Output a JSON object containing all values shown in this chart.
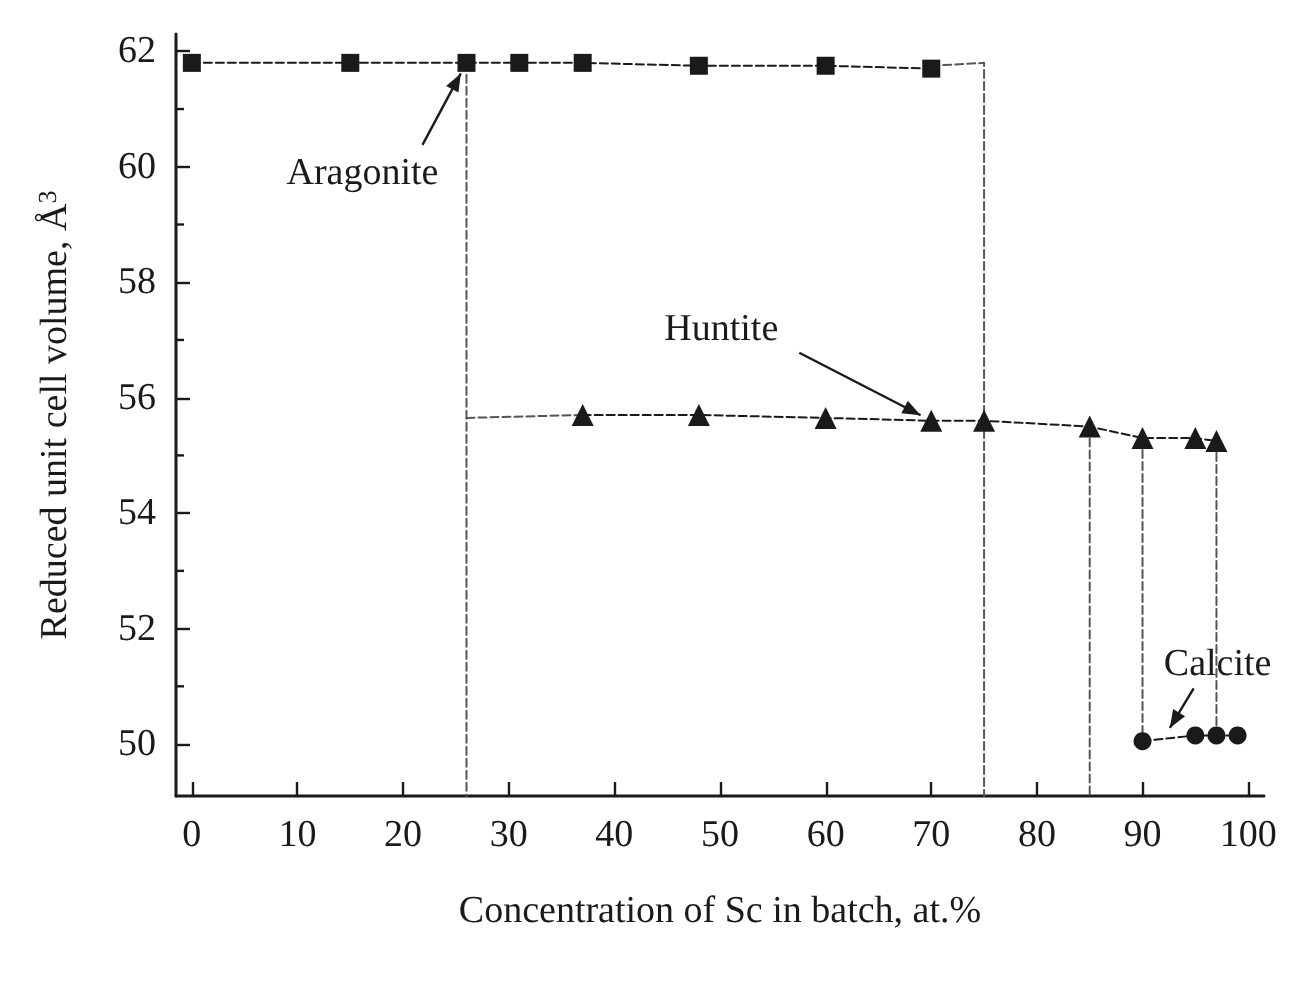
{
  "chart_data": {
    "type": "line",
    "xlabel": "Concentration of Sc in batch, at.%",
    "ylabel": "Reduced unit cell volume, Å$^{3}$",
    "xlim": [
      -1.5,
      101.5
    ],
    "xticks": [
      0,
      10,
      20,
      30,
      40,
      50,
      60,
      70,
      80,
      90,
      100
    ],
    "ylim": [
      49.1,
      62.3
    ],
    "yticks": [
      50,
      52,
      54,
      56,
      58,
      60,
      62
    ],
    "grid": false,
    "line_style": "dashed",
    "series": [
      {
        "marker": "square",
        "color": "#1a1a1a",
        "x": [
          0,
          15,
          26,
          31,
          37,
          48,
          60,
          70
        ],
        "values": [
          61.8,
          61.8,
          61.8,
          61.8,
          61.8,
          61.75,
          61.75,
          61.7
        ]
      },
      {
        "marker": "triangle",
        "color": "#1a1a1a",
        "x": [
          37,
          48,
          60,
          70,
          75,
          85,
          90,
          95,
          97
        ],
        "values": [
          55.7,
          55.7,
          55.65,
          55.6,
          55.6,
          55.5,
          55.3,
          55.3,
          55.25
        ]
      },
      {
        "marker": "circle",
        "color": "#1a1a1a",
        "x": [
          90,
          95,
          97,
          99
        ],
        "values": [
          50.05,
          50.15,
          50.15,
          50.15
        ]
      },
      {
        "marker": "none",
        "color": "#555555",
        "x": [
          26,
          26
        ],
        "values": [
          61.8,
          49.1
        ]
      },
      {
        "marker": "none",
        "color": "#555555",
        "x": [
          26,
          37
        ],
        "values": [
          55.65,
          55.7
        ]
      },
      {
        "marker": "none",
        "color": "#555555",
        "x": [
          70,
          75,
          75
        ],
        "values": [
          61.75,
          61.8,
          49.1
        ]
      },
      {
        "marker": "none",
        "color": "#555555",
        "x": [
          85,
          85
        ],
        "values": [
          55.5,
          49.1
        ]
      },
      {
        "marker": "none",
        "color": "#555555",
        "x": [
          90,
          90
        ],
        "values": [
          55.3,
          50.05
        ]
      },
      {
        "marker": "none",
        "color": "#555555",
        "x": [
          97,
          97
        ],
        "values": [
          55.25,
          50.15
        ]
      }
    ],
    "annotations": [
      {
        "text": "Aragonite",
        "x": 26,
        "y": 61.8
      },
      {
        "text": "Huntite",
        "x": 70,
        "y": 55.6
      },
      {
        "text": "Calcite",
        "x": 92,
        "y": 50.1
      }
    ]
  }
}
